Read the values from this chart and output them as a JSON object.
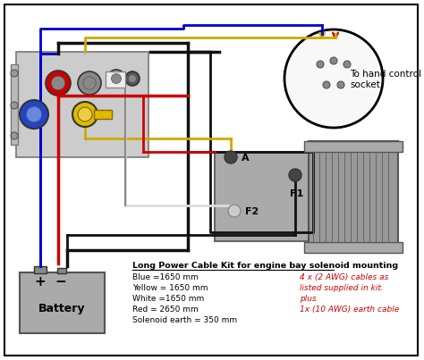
{
  "bg_color": "#ffffff",
  "text_legend_title": "Long Power Cable Kit for engine bay solenoid mounting",
  "text_legend_lines": [
    "Blue =1650 mm",
    "Yellow = 1650 mm",
    "White =1650 mm",
    "Red = 2650 mm",
    "Solenoid earth = 350 mm"
  ],
  "text_red_lines": [
    "4 x (2 AWG) cables as",
    "listed supplied in kit.",
    "plus",
    "1x (10 AWG) earth cable"
  ],
  "hand_control_label": "To hand control\nsocket.",
  "battery_label": "Battery",
  "motor_label_A": "A",
  "motor_label_F1": "F1",
  "motor_label_F2": "F2"
}
